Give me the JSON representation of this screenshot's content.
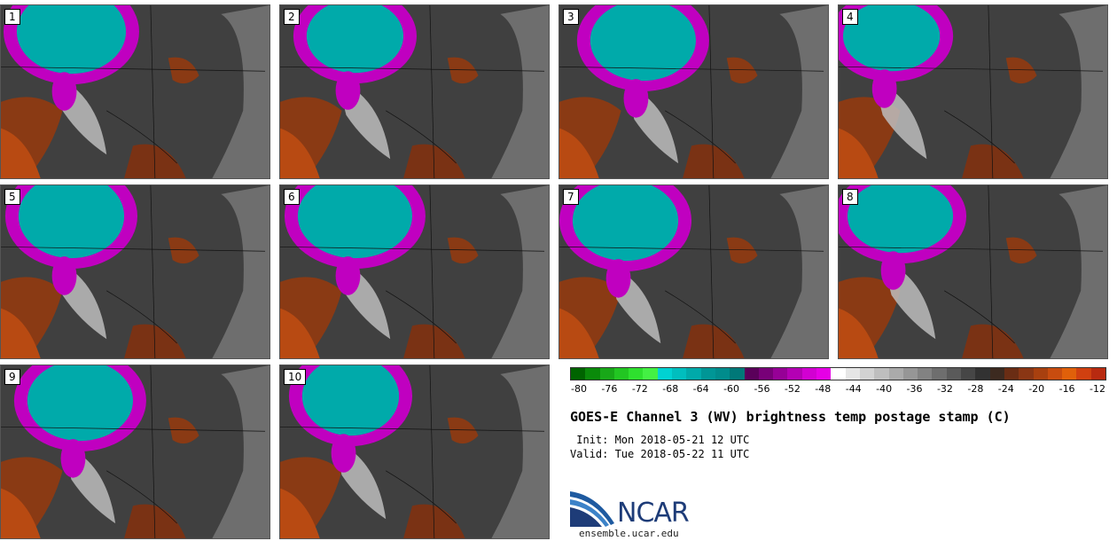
{
  "panels": [
    {
      "label": "1"
    },
    {
      "label": "2"
    },
    {
      "label": "3"
    },
    {
      "label": "4"
    },
    {
      "label": "5"
    },
    {
      "label": "6"
    },
    {
      "label": "7"
    },
    {
      "label": "8"
    },
    {
      "label": "9"
    },
    {
      "label": "10"
    }
  ],
  "colorbar": {
    "colors": [
      "#006400",
      "#0a8a0a",
      "#18a818",
      "#22c622",
      "#2ee02e",
      "#44f044",
      "#00d2d2",
      "#00bebe",
      "#00aaaa",
      "#009696",
      "#008c8c",
      "#007878",
      "#5a005a",
      "#780078",
      "#960096",
      "#b400b4",
      "#d200d2",
      "#e600e6",
      "#ffffff",
      "#e6e6e6",
      "#d2d2d2",
      "#bebebe",
      "#aaaaaa",
      "#969696",
      "#828282",
      "#6e6e6e",
      "#5a5a5a",
      "#464646",
      "#323232",
      "#3c2a20",
      "#6a2d14",
      "#8a3614",
      "#a8400f",
      "#c84c0f",
      "#e0600a",
      "#d04010",
      "#b82a10"
    ],
    "ticks": [
      "-80",
      "-76",
      "-72",
      "-68",
      "-64",
      "-60",
      "-56",
      "-52",
      "-48",
      "-44",
      "-40",
      "-36",
      "-32",
      "-28",
      "-24",
      "-20",
      "-16",
      "-12"
    ]
  },
  "title": "GOES-E Channel 3 (WV) brightness temp postage stamp (C)",
  "init": " Init: Mon 2018-05-21 12 UTC",
  "valid": "Valid: Tue 2018-05-22 11 UTC",
  "logo_text": "NCAR",
  "website": "ensemble.ucar.edu"
}
